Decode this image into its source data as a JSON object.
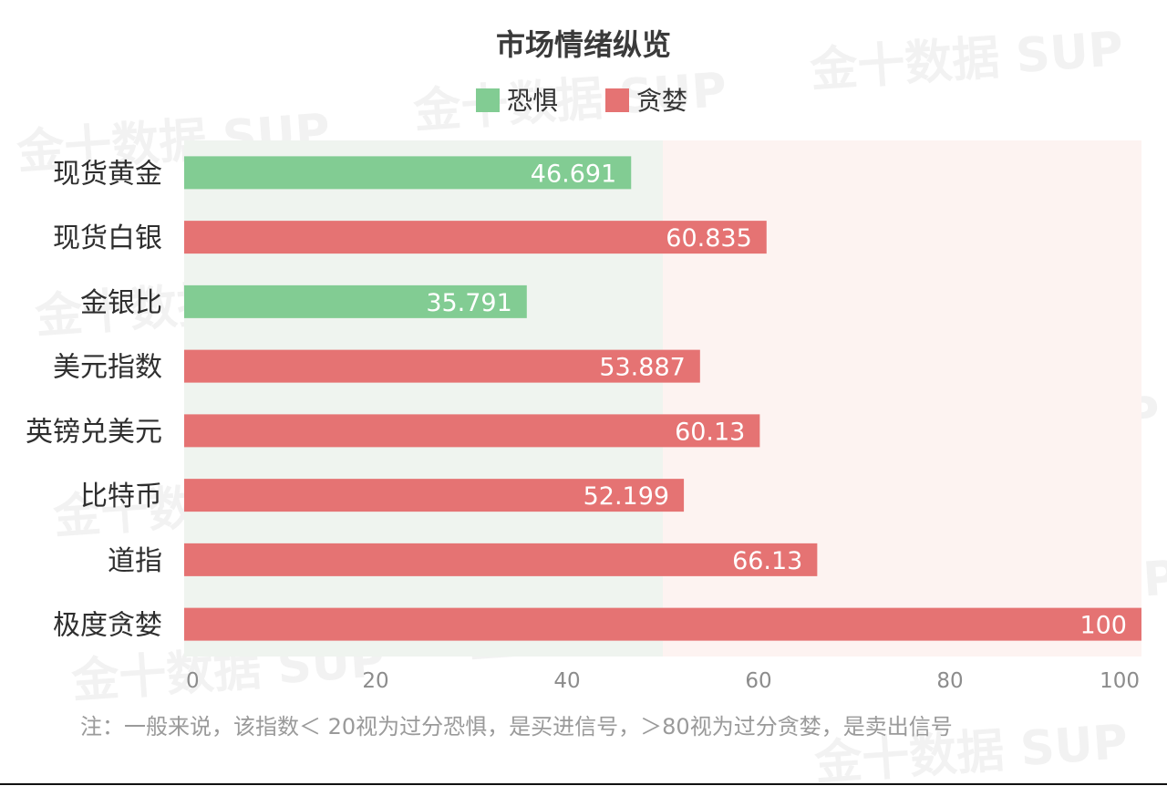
{
  "chart_data": {
    "type": "bar",
    "orientation": "horizontal",
    "title": "市场情绪纵览",
    "legend": [
      {
        "name": "恐惧",
        "color": "#82cc93"
      },
      {
        "name": "贪婪",
        "color": "#e57373"
      }
    ],
    "legend_position": "top",
    "categories": [
      "现货黄金",
      "现货白银",
      "金银比",
      "美元指数",
      "英镑兑美元",
      "比特币",
      "道指",
      "极度贪婪"
    ],
    "values": [
      46.691,
      60.835,
      35.791,
      53.887,
      60.13,
      52.199,
      66.13,
      100
    ],
    "value_labels": [
      "46.691",
      "60.835",
      "35.791",
      "53.887",
      "60.13",
      "52.199",
      "66.13",
      "100"
    ],
    "series_of_bar": [
      "恐惧",
      "贪婪",
      "恐惧",
      "贪婪",
      "贪婪",
      "贪婪",
      "贪婪",
      "贪婪"
    ],
    "xlim": [
      0,
      100
    ],
    "xticks": [
      0,
      20,
      40,
      60,
      80,
      100
    ],
    "background_split": 50,
    "background_colors": {
      "fear": "#eff4ef",
      "greed": "#fdf3f1"
    },
    "grid": false
  },
  "footnote": "注：一般来说，该指数＜ 20视为过分恐惧，是买进信号，＞80视为过分贪婪，是卖出信号",
  "watermark": "金十数据 SUP"
}
